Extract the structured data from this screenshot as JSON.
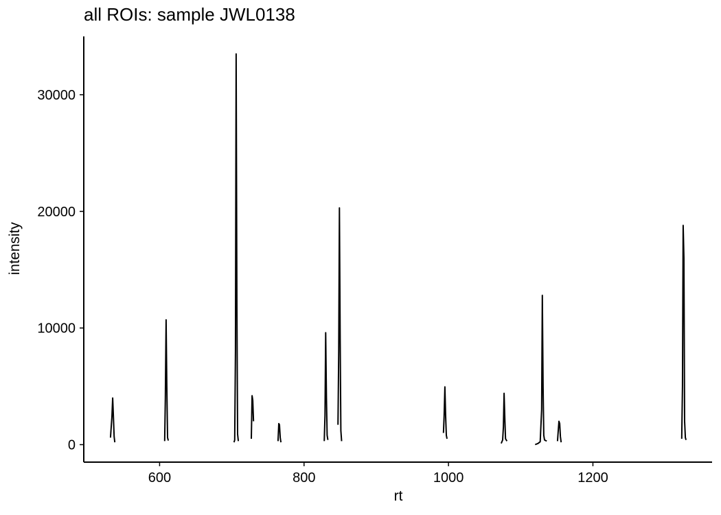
{
  "chart_data": {
    "type": "line",
    "title": "all ROIs: sample JWL0138",
    "xlabel": "rt",
    "ylabel": "intensity",
    "xlim": [
      495,
      1365
    ],
    "ylim": [
      -1500,
      35000
    ],
    "x_ticks": [
      600,
      800,
      1000,
      1200
    ],
    "y_ticks": [
      0,
      10000,
      20000,
      30000
    ],
    "grid": false,
    "legend": "none",
    "line_color": "#000000",
    "series": [
      {
        "x": [
          532,
          534,
          535,
          536,
          537,
          538
        ],
        "y": [
          600,
          2400,
          4000,
          2500,
          700,
          200
        ]
      },
      {
        "x": [
          607,
          608,
          609,
          610,
          611,
          612
        ],
        "y": [
          300,
          4000,
          10700,
          5200,
          600,
          350
        ]
      },
      {
        "x": [
          703,
          704,
          705,
          706,
          707,
          708,
          709
        ],
        "y": [
          200,
          400,
          8000,
          33500,
          12000,
          900,
          300
        ]
      },
      {
        "x": [
          727,
          728,
          729,
          730
        ],
        "y": [
          500,
          4200,
          3800,
          2000
        ]
      },
      {
        "x": [
          764,
          765,
          766,
          767,
          768
        ],
        "y": [
          300,
          1800,
          1700,
          600,
          200
        ]
      },
      {
        "x": [
          828,
          829,
          830,
          831,
          832,
          833
        ],
        "y": [
          300,
          2500,
          9600,
          4000,
          800,
          400
        ]
      },
      {
        "x": [
          847,
          848,
          849,
          850,
          851,
          852
        ],
        "y": [
          1700,
          8000,
          20300,
          9000,
          1200,
          300
        ]
      },
      {
        "x": [
          993,
          994,
          995,
          996,
          997,
          998
        ],
        "y": [
          1000,
          2500,
          4950,
          2600,
          800,
          500
        ]
      },
      {
        "x": [
          1073,
          1075,
          1076,
          1077,
          1078,
          1079,
          1081
        ],
        "y": [
          100,
          400,
          1500,
          4400,
          2200,
          500,
          300
        ]
      },
      {
        "x": [
          1120,
          1124,
          1127,
          1129,
          1130,
          1131,
          1132,
          1133,
          1136
        ],
        "y": [
          0,
          100,
          250,
          3000,
          12800,
          5000,
          800,
          400,
          300
        ]
      },
      {
        "x": [
          1151,
          1152,
          1153,
          1154,
          1155,
          1156
        ],
        "y": [
          300,
          1200,
          2000,
          1800,
          700,
          200
        ]
      },
      {
        "x": [
          1323,
          1324,
          1325,
          1326,
          1327,
          1328,
          1329
        ],
        "y": [
          500,
          5000,
          18800,
          16000,
          2000,
          600,
          400
        ]
      }
    ]
  }
}
